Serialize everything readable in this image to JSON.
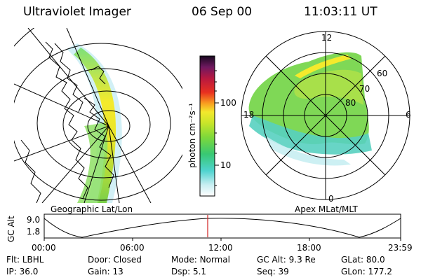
{
  "header": {
    "instrument": "Ultraviolet Imager",
    "date": "06 Sep 00",
    "time": "11:03:11 UT"
  },
  "colorbar": {
    "unit_label": "photon cm⁻²s⁻¹",
    "ticks": [
      "100",
      "10"
    ]
  },
  "left_panel": {
    "label": "Geographic Lat/Lon"
  },
  "right_panel": {
    "label": "Apex MLat/MLT",
    "mlt_labels": [
      "12",
      "6",
      "0",
      "18"
    ],
    "mlat_labels": [
      "60",
      "70",
      "80"
    ]
  },
  "altitude_plot": {
    "ylabel": "GC Alt",
    "yticks": [
      "9.0",
      "1.8"
    ],
    "xticks": [
      "00:00",
      "06:00",
      "12:00",
      "18:00",
      "23:59"
    ],
    "current_time_marker": "11:03",
    "marker_color": "#d02020"
  },
  "footer": {
    "rows": [
      [
        {
          "key": "Flt:",
          "value": "LBHL"
        },
        {
          "key": "Door:",
          "value": "Closed"
        },
        {
          "key": "Mode:",
          "value": "Normal"
        },
        {
          "key": "GC Alt:",
          "value": "9.3 Re"
        },
        {
          "key": "GLat:",
          "value": "80.0"
        }
      ],
      [
        {
          "key": "IP:",
          "value": "36.0"
        },
        {
          "key": "Gain:",
          "value": "13"
        },
        {
          "key": "Dsp:",
          "value": "5.1"
        },
        {
          "key": "Seq:",
          "value": "39"
        },
        {
          "key": "GLon:",
          "value": "177.2"
        }
      ]
    ]
  }
}
